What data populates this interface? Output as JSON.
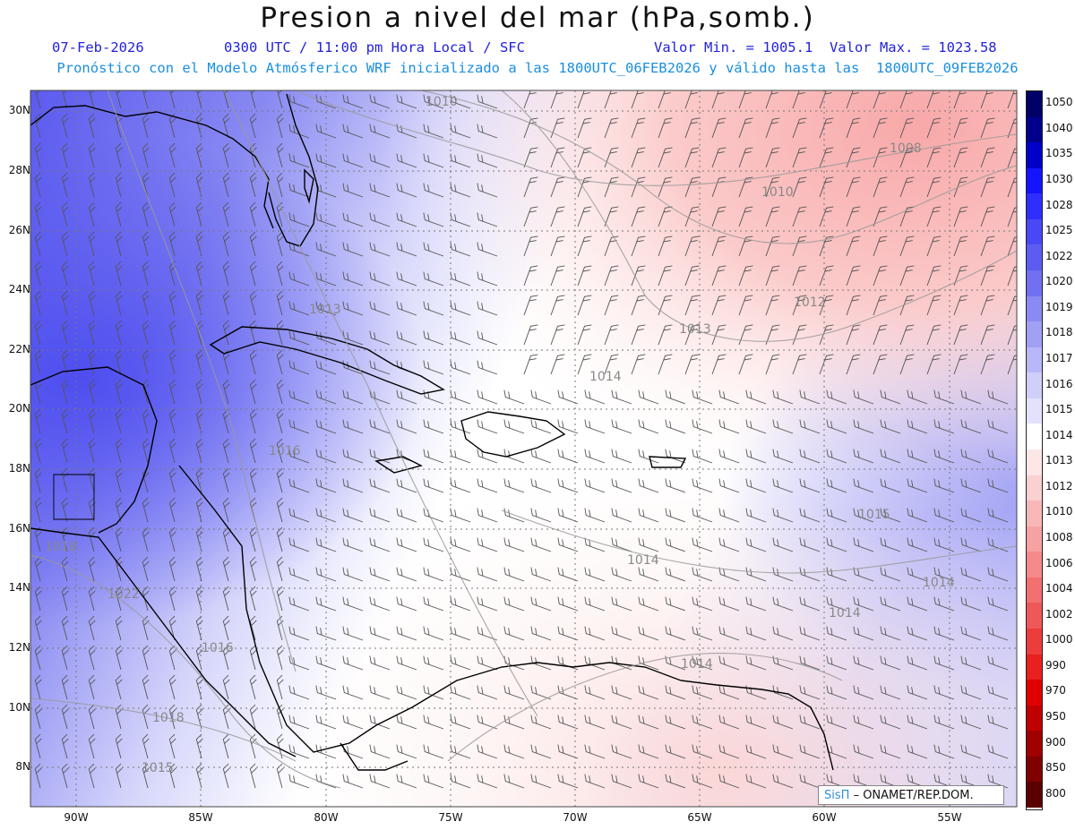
{
  "header": {
    "title": "Presion a nivel del mar (hPa,somb.)",
    "date": "07-Feb-2026",
    "time": "0300 UTC / 11:00 pm Hora Local / SFC",
    "minmax": "Valor Min. = 1005.1  Valor Max. = 1023.58",
    "model_line": "Pronóstico con el Modelo Atmósferico WRF inicializado a las 1800UTC_06FEB2026 y válido hasta las  1800UTC_09FEB2026"
  },
  "axes": {
    "lat_ticks": [
      "30N",
      "28N",
      "26N",
      "24N",
      "22N",
      "20N",
      "18N",
      "16N",
      "14N",
      "12N",
      "10N",
      "8N"
    ],
    "lon_ticks": [
      "90W",
      "85W",
      "80W",
      "75W",
      "70W",
      "65W",
      "60W",
      "55W"
    ]
  },
  "legend": {
    "levels": [
      "1050",
      "1040",
      "1035",
      "1030",
      "1028",
      "1025",
      "1022",
      "1020",
      "1019",
      "1018",
      "1017",
      "1016",
      "1015",
      "1014",
      "1013",
      "1012",
      "1010",
      "1008",
      "1006",
      "1004",
      "1002",
      "1000",
      "990",
      "970",
      "950",
      "900",
      "850",
      "800"
    ],
    "colors": [
      "#000066",
      "#00008c",
      "#0000c8",
      "#1414ff",
      "#2e2eff",
      "#4848f5",
      "#5c5cf2",
      "#7070f0",
      "#8a8af2",
      "#a0a0f5",
      "#b8b8f8",
      "#cfcffa",
      "#e2e2fc",
      "#ffffff",
      "#fde6e6",
      "#fbd0d0",
      "#f9b8b8",
      "#f7a2a2",
      "#f58a8a",
      "#f27070",
      "#ef5858",
      "#ec3c3c",
      "#e82020",
      "#e00000",
      "#c00000",
      "#a00000",
      "#800000",
      "#5a0000"
    ]
  },
  "contour_labels": [
    "1010",
    "1008",
    "1010",
    "1012",
    "1013",
    "1014",
    "1014",
    "1014",
    "1015",
    "1014",
    "1013",
    "1016",
    "1018",
    "1022",
    "1016",
    "1018",
    "1015",
    "1014"
  ],
  "credit": {
    "brand": "SisΠ",
    "text": "– ONAMET/REP.DOM."
  }
}
